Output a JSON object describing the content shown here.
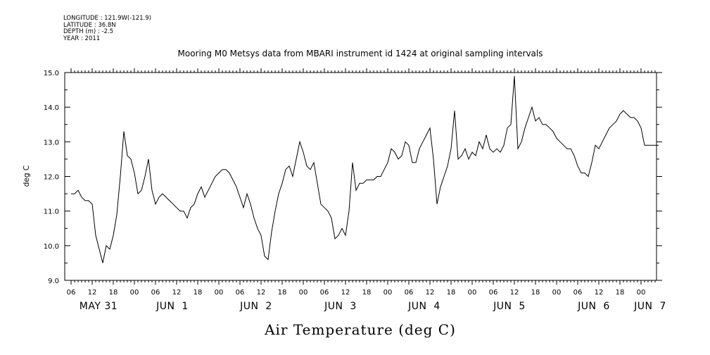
{
  "metadata": {
    "longitude": "LONGITUDE : 121.9W(-121.9)",
    "latitude": "LATITUDE : 36.8N",
    "depth": "DEPTH (m) : -2.5",
    "year": "YEAR : 2011"
  },
  "chart_data": {
    "type": "line",
    "title": "Mooring M0 Metsys data from MBARI instrument id 1424 at original sampling intervals",
    "xlabel": "Air Temperature (deg C)",
    "ylabel": "deg C",
    "xlim_hours": [
      0,
      168
    ],
    "ylim": [
      9.0,
      15.0
    ],
    "yticks": [
      "9.0",
      "10.0",
      "11.0",
      "12.0",
      "13.0",
      "14.0",
      "15.0"
    ],
    "hour_ticks": [
      "06",
      "12",
      "18",
      "00",
      "06",
      "12",
      "18",
      "00",
      "06",
      "12",
      "18",
      "00",
      "06",
      "12",
      "18",
      "00",
      "06",
      "12",
      "18",
      "00",
      "06",
      "12",
      "18",
      "00",
      "06",
      "12",
      "18",
      "00"
    ],
    "date_labels": [
      "MAY 31",
      "JUN  1",
      "JUN  2",
      "JUN  3",
      "JUN  4",
      "JUN  5",
      "JUN  6",
      "JUN  7"
    ],
    "grid": false,
    "series": [
      {
        "x_hours": [
          0,
          1,
          2,
          3,
          4,
          5,
          6,
          7,
          8,
          9,
          10,
          11,
          12,
          13,
          14,
          15,
          16,
          17,
          18,
          19,
          20,
          21,
          22,
          23,
          24,
          25,
          26,
          27,
          28,
          29,
          30,
          31,
          32,
          33,
          34,
          35,
          36,
          37,
          38,
          39,
          40,
          41,
          42,
          43,
          44,
          45,
          46,
          47,
          48,
          49,
          50,
          51,
          52,
          53,
          54,
          55,
          56,
          57,
          58,
          59,
          60,
          61,
          62,
          63,
          64,
          65,
          66,
          67,
          68,
          69,
          70,
          71,
          72,
          73,
          74,
          75,
          76,
          77,
          78,
          79,
          80,
          81,
          82,
          83,
          84,
          85,
          86,
          87,
          88,
          89,
          90,
          91,
          92,
          93,
          94,
          95,
          96,
          97,
          98,
          99,
          100,
          101,
          102,
          103,
          104,
          105,
          106,
          107,
          108,
          109,
          110,
          111,
          112,
          113,
          114,
          115,
          116,
          117,
          118,
          119,
          120,
          121,
          122,
          123,
          124,
          125,
          126,
          127,
          128,
          129,
          130,
          131,
          132,
          133,
          134,
          135,
          136,
          137,
          138,
          139,
          140,
          141,
          142,
          143,
          144,
          145,
          146,
          147,
          148,
          149,
          150,
          151,
          152,
          153,
          154,
          155,
          156,
          157,
          158,
          159,
          160,
          161,
          162,
          163,
          164,
          165,
          166,
          167
        ],
        "values": [
          11.5,
          11.5,
          11.6,
          11.4,
          11.3,
          11.3,
          11.2,
          10.3,
          9.9,
          9.5,
          10.0,
          9.9,
          10.3,
          10.9,
          12.0,
          13.3,
          12.6,
          12.5,
          12.1,
          11.5,
          11.6,
          12.0,
          12.5,
          11.6,
          11.2,
          11.4,
          11.5,
          11.4,
          11.3,
          11.2,
          11.1,
          11.0,
          11.0,
          10.8,
          11.1,
          11.2,
          11.5,
          11.7,
          11.4,
          11.6,
          11.8,
          12.0,
          12.1,
          12.2,
          12.2,
          12.1,
          11.9,
          11.7,
          11.4,
          11.1,
          11.5,
          11.2,
          10.8,
          10.5,
          10.3,
          9.7,
          9.6,
          10.4,
          11.0,
          11.5,
          11.8,
          12.2,
          12.3,
          12.0,
          12.5,
          13.0,
          12.7,
          12.3,
          12.2,
          12.4,
          11.8,
          11.2,
          11.1,
          11.0,
          10.8,
          10.2,
          10.3,
          10.5,
          10.3,
          11.0,
          12.4,
          11.6,
          11.8,
          11.8,
          11.9,
          11.9,
          11.9,
          12.0,
          12.0,
          12.2,
          12.4,
          12.8,
          12.7,
          12.5,
          12.6,
          13.0,
          12.9,
          12.4,
          12.4,
          12.8,
          13.0,
          13.2,
          13.4,
          12.5,
          11.2,
          11.7,
          12.0,
          12.3,
          12.8,
          13.9,
          12.5,
          12.6,
          12.8,
          12.5,
          12.7,
          12.6,
          13.0,
          12.8,
          13.2,
          12.8,
          12.7,
          12.8,
          12.7,
          12.9,
          13.4,
          13.5,
          14.9,
          12.8,
          13.0,
          13.4,
          13.7,
          14.0,
          13.6,
          13.7,
          13.5,
          13.5,
          13.4,
          13.3,
          13.1,
          13.0,
          12.9,
          12.8,
          12.8,
          12.6,
          12.3,
          12.1,
          12.1,
          12.0,
          12.4,
          12.9,
          12.8,
          13.0,
          13.2,
          13.4,
          13.5,
          13.6,
          13.8,
          13.9,
          13.8,
          13.7,
          13.7,
          13.6,
          13.4,
          12.9,
          12.9,
          12.9,
          12.9,
          12.9
        ]
      }
    ]
  }
}
